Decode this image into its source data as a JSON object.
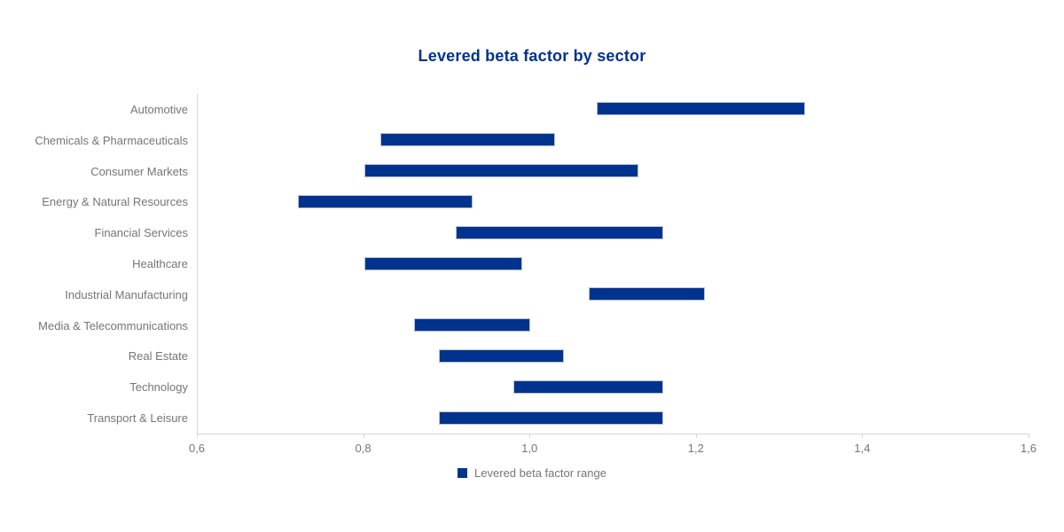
{
  "header": {
    "title": "Levered beta factor by sector"
  },
  "chart_data": {
    "type": "bar",
    "subtype": "horizontal-range-bar",
    "title": "Levered beta factor by sector",
    "xlabel": "",
    "ylabel": "",
    "xlim": [
      0.6,
      1.6
    ],
    "grid": false,
    "legend_position": "bottom-center",
    "categories": [
      "Automotive",
      "Chemicals & Pharmaceuticals",
      "Consumer Markets",
      "Energy & Natural Resources",
      "Financial Services",
      "Healthcare",
      "Industrial Manufacturing",
      "Media & Telecommunications",
      "Real Estate",
      "Technology",
      "Transport & Leisure"
    ],
    "series": [
      {
        "name": "Levered beta factor range",
        "ranges": [
          [
            1.08,
            1.33
          ],
          [
            0.82,
            1.03
          ],
          [
            0.8,
            1.13
          ],
          [
            0.72,
            0.93
          ],
          [
            0.91,
            1.16
          ],
          [
            0.8,
            0.99
          ],
          [
            1.07,
            1.21
          ],
          [
            0.86,
            1.0
          ],
          [
            0.89,
            1.04
          ],
          [
            0.98,
            1.16
          ],
          [
            0.89,
            1.16
          ]
        ]
      }
    ],
    "x_ticks": [
      0.6,
      0.8,
      1.0,
      1.2,
      1.4,
      1.6
    ],
    "x_tick_labels": [
      "0,6",
      "0,8",
      "1,0",
      "1,2",
      "1,4",
      "1,6"
    ],
    "colors": {
      "bar": "#00338D",
      "bar_border": "#b3c0da",
      "title": "#00338D",
      "axis_line": "#d6d6d6",
      "label_text": "#757575"
    }
  },
  "legend": {
    "label": "Levered beta factor range",
    "swatch_color": "#00338D"
  }
}
